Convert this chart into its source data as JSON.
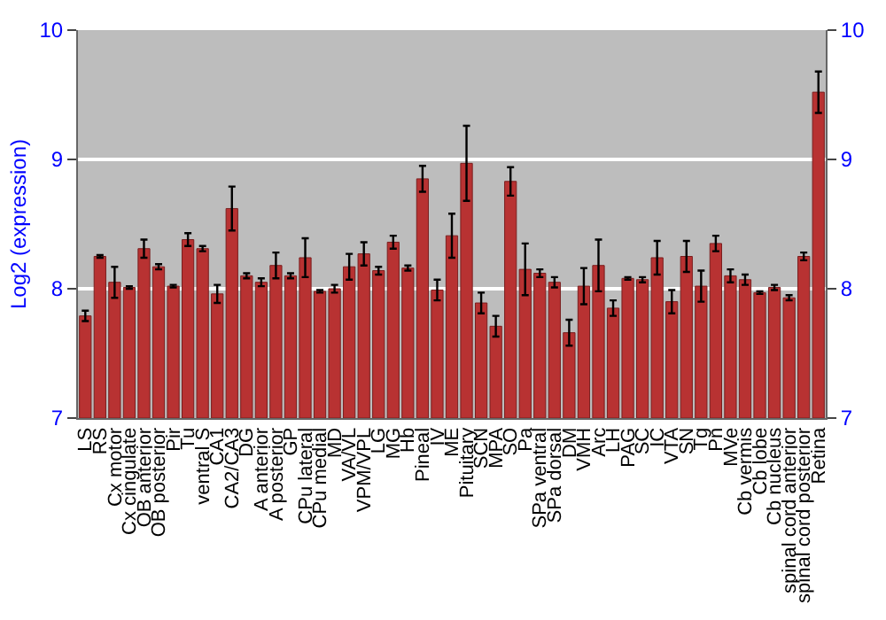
{
  "chart_data": {
    "type": "bar",
    "ylabel": "Log2 (expression)",
    "categories": [
      "LS",
      "RS",
      "Cx motor",
      "Cx cingulate",
      "OB anterior",
      "OB posterior",
      "Pir",
      "Tu",
      "ventral S",
      "CA1",
      "CA2/CA3",
      "DG",
      "A anterior",
      "A posterior",
      "GP",
      "CPu lateral",
      "CPu medial",
      "MD",
      "VA/VL",
      "VPM/VPL",
      "LG",
      "MG",
      "Hb",
      "Pineal",
      "IV",
      "ME",
      "Pituitary",
      "SCN",
      "MPA",
      "SO",
      "Pa",
      "SPa ventral",
      "SPa dorsal",
      "DM",
      "VMH",
      "Arc",
      "LH",
      "PAG",
      "SC",
      "IC",
      "VTA",
      "SN",
      "Tg",
      "Pn",
      "MVe",
      "Cb vermis",
      "Cb lobe",
      "Cb nucleus",
      "spinal cord anterior",
      "spinal cord posterior",
      "Retina"
    ],
    "values": [
      7.79,
      8.25,
      8.05,
      8.01,
      8.31,
      8.17,
      8.02,
      8.38,
      8.31,
      7.96,
      8.62,
      8.1,
      8.05,
      8.18,
      8.1,
      8.24,
      7.98,
      8.0,
      8.17,
      8.27,
      8.14,
      8.36,
      8.16,
      8.85,
      7.99,
      8.41,
      8.97,
      7.89,
      7.71,
      8.83,
      8.15,
      8.12,
      8.05,
      7.66,
      8.02,
      8.18,
      7.85,
      8.08,
      8.07,
      8.24,
      7.9,
      8.25,
      8.02,
      8.35,
      8.1,
      8.07,
      7.97,
      8.01,
      7.93,
      8.25,
      9.52
    ],
    "errors": [
      0.04,
      0.01,
      0.12,
      0.01,
      0.07,
      0.02,
      0.01,
      0.05,
      0.02,
      0.07,
      0.17,
      0.02,
      0.03,
      0.1,
      0.02,
      0.15,
      0.01,
      0.03,
      0.1,
      0.09,
      0.03,
      0.05,
      0.02,
      0.1,
      0.08,
      0.17,
      0.29,
      0.08,
      0.08,
      0.11,
      0.2,
      0.03,
      0.04,
      0.1,
      0.14,
      0.2,
      0.06,
      0.01,
      0.02,
      0.13,
      0.09,
      0.12,
      0.12,
      0.06,
      0.05,
      0.04,
      0.01,
      0.02,
      0.02,
      0.03,
      0.16
    ],
    "color": "#b83232",
    "ylim": [
      7,
      10
    ],
    "yticks": [
      7,
      8,
      9,
      10
    ],
    "y2lim": [
      7,
      10
    ],
    "y2ticks": [
      7,
      8,
      9,
      10
    ],
    "grid": "y"
  }
}
